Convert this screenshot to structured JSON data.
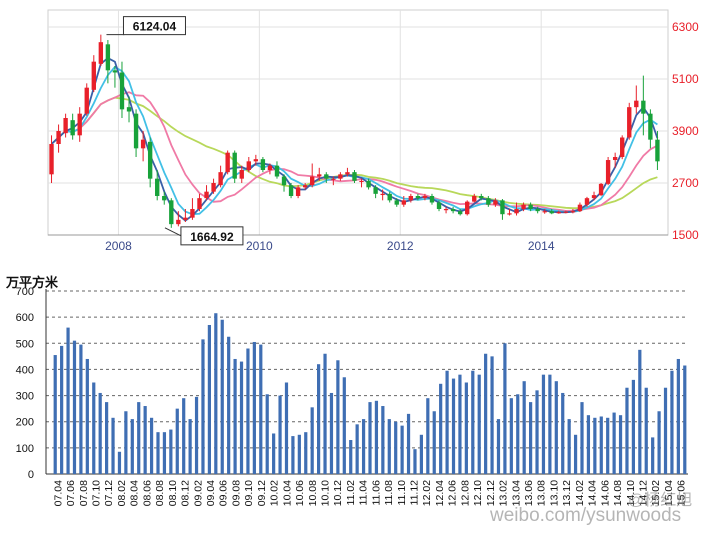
{
  "chart_data": [
    {
      "type": "candlestick",
      "title": "",
      "xlabel": "",
      "ylabel": "",
      "x_ticks": [
        "2008",
        "2010",
        "2012",
        "2014"
      ],
      "y_ticks": [
        "6300",
        "5100",
        "3900",
        "2700",
        "1500"
      ],
      "ylim": [
        1500,
        6300
      ],
      "xlim": [
        2007.0,
        2015.8
      ],
      "grid": true,
      "annotations": [
        {
          "text": "6124.04",
          "x": 2007.83,
          "y": 6124
        },
        {
          "text": "1664.92",
          "x": 2008.83,
          "y": 1665
        }
      ],
      "colors": {
        "up": "#e8202a",
        "down": "#18a23a",
        "axis_labels": "#e8202a",
        "ma_fast": "#3a5fa8",
        "ma_mid": "#42c0e6",
        "ma_slow": "#f07aa6",
        "ma_long": "#b8d85a"
      },
      "candles": [
        {
          "t": 2007.05,
          "o": 2900,
          "c": 3600,
          "h": 3800,
          "l": 2700
        },
        {
          "t": 2007.15,
          "o": 3600,
          "c": 3900,
          "h": 4050,
          "l": 3400
        },
        {
          "t": 2007.25,
          "o": 3850,
          "c": 4200,
          "h": 4300,
          "l": 3750
        },
        {
          "t": 2007.35,
          "o": 4150,
          "c": 3800,
          "h": 4300,
          "l": 3700
        },
        {
          "t": 2007.45,
          "o": 3800,
          "c": 4300,
          "h": 4450,
          "l": 3650
        },
        {
          "t": 2007.55,
          "o": 4300,
          "c": 4900,
          "h": 5000,
          "l": 4250
        },
        {
          "t": 2007.65,
          "o": 4850,
          "c": 5500,
          "h": 5650,
          "l": 4800
        },
        {
          "t": 2007.75,
          "o": 5450,
          "c": 5950,
          "h": 6124,
          "l": 5400
        },
        {
          "t": 2007.85,
          "o": 5900,
          "c": 5300,
          "h": 6000,
          "l": 5000
        },
        {
          "t": 2007.95,
          "o": 5300,
          "c": 5250,
          "h": 5400,
          "l": 4900
        },
        {
          "t": 2008.05,
          "o": 5250,
          "c": 4400,
          "h": 5500,
          "l": 4200
        },
        {
          "t": 2008.15,
          "o": 4450,
          "c": 4350,
          "h": 4700,
          "l": 4100
        },
        {
          "t": 2008.25,
          "o": 4300,
          "c": 3500,
          "h": 4400,
          "l": 3300
        },
        {
          "t": 2008.35,
          "o": 3500,
          "c": 3700,
          "h": 3900,
          "l": 3200
        },
        {
          "t": 2008.45,
          "o": 3650,
          "c": 2800,
          "h": 3750,
          "l": 2600
        },
        {
          "t": 2008.55,
          "o": 2800,
          "c": 2400,
          "h": 3000,
          "l": 2300
        },
        {
          "t": 2008.65,
          "o": 2400,
          "c": 2300,
          "h": 2500,
          "l": 2200
        },
        {
          "t": 2008.75,
          "o": 2300,
          "c": 1750,
          "h": 2350,
          "l": 1665
        },
        {
          "t": 2008.85,
          "o": 1750,
          "c": 1850,
          "h": 2050,
          "l": 1700
        },
        {
          "t": 2008.95,
          "o": 1850,
          "c": 1900,
          "h": 2100,
          "l": 1800
        },
        {
          "t": 2009.05,
          "o": 1900,
          "c": 2100,
          "h": 2350,
          "l": 1850
        },
        {
          "t": 2009.15,
          "o": 2100,
          "c": 2350,
          "h": 2450,
          "l": 2050
        },
        {
          "t": 2009.25,
          "o": 2350,
          "c": 2500,
          "h": 2650,
          "l": 2300
        },
        {
          "t": 2009.35,
          "o": 2500,
          "c": 2700,
          "h": 2800,
          "l": 2450
        },
        {
          "t": 2009.45,
          "o": 2650,
          "c": 2950,
          "h": 3100,
          "l": 2600
        },
        {
          "t": 2009.55,
          "o": 2950,
          "c": 3400,
          "h": 3450,
          "l": 2900
        },
        {
          "t": 2009.65,
          "o": 3400,
          "c": 2800,
          "h": 3450,
          "l": 2700
        },
        {
          "t": 2009.75,
          "o": 2800,
          "c": 3000,
          "h": 3100,
          "l": 2700
        },
        {
          "t": 2009.85,
          "o": 3000,
          "c": 3200,
          "h": 3300,
          "l": 2950
        },
        {
          "t": 2009.95,
          "o": 3200,
          "c": 3250,
          "h": 3350,
          "l": 3100
        },
        {
          "t": 2010.05,
          "o": 3250,
          "c": 3000,
          "h": 3300,
          "l": 2950
        },
        {
          "t": 2010.15,
          "o": 3000,
          "c": 3100,
          "h": 3150,
          "l": 2900
        },
        {
          "t": 2010.25,
          "o": 3100,
          "c": 2850,
          "h": 3200,
          "l": 2800
        },
        {
          "t": 2010.35,
          "o": 2850,
          "c": 2650,
          "h": 2900,
          "l": 2500
        },
        {
          "t": 2010.45,
          "o": 2650,
          "c": 2400,
          "h": 2700,
          "l": 2350
        },
        {
          "t": 2010.55,
          "o": 2400,
          "c": 2600,
          "h": 2650,
          "l": 2350
        },
        {
          "t": 2010.65,
          "o": 2600,
          "c": 2650,
          "h": 2700,
          "l": 2550
        },
        {
          "t": 2010.75,
          "o": 2650,
          "c": 2850,
          "h": 3150,
          "l": 2600
        },
        {
          "t": 2010.85,
          "o": 2850,
          "c": 2900,
          "h": 3050,
          "l": 2750
        },
        {
          "t": 2010.95,
          "o": 2900,
          "c": 2800,
          "h": 2950,
          "l": 2700
        },
        {
          "t": 2011.05,
          "o": 2800,
          "c": 2800,
          "h": 2850,
          "l": 2650
        },
        {
          "t": 2011.15,
          "o": 2800,
          "c": 2900,
          "h": 2950,
          "l": 2750
        },
        {
          "t": 2011.25,
          "o": 2900,
          "c": 2950,
          "h": 3050,
          "l": 2850
        },
        {
          "t": 2011.35,
          "o": 2950,
          "c": 2750,
          "h": 3000,
          "l": 2700
        },
        {
          "t": 2011.45,
          "o": 2750,
          "c": 2750,
          "h": 2800,
          "l": 2600
        },
        {
          "t": 2011.55,
          "o": 2750,
          "c": 2600,
          "h": 2800,
          "l": 2550
        },
        {
          "t": 2011.65,
          "o": 2600,
          "c": 2450,
          "h": 2650,
          "l": 2350
        },
        {
          "t": 2011.75,
          "o": 2450,
          "c": 2450,
          "h": 2550,
          "l": 2300
        },
        {
          "t": 2011.85,
          "o": 2450,
          "c": 2300,
          "h": 2500,
          "l": 2250
        },
        {
          "t": 2011.95,
          "o": 2300,
          "c": 2200,
          "h": 2350,
          "l": 2150
        },
        {
          "t": 2012.05,
          "o": 2200,
          "c": 2300,
          "h": 2400,
          "l": 2150
        },
        {
          "t": 2012.15,
          "o": 2300,
          "c": 2400,
          "h": 2450,
          "l": 2250
        },
        {
          "t": 2012.25,
          "o": 2400,
          "c": 2350,
          "h": 2450,
          "l": 2300
        },
        {
          "t": 2012.35,
          "o": 2350,
          "c": 2400,
          "h": 2450,
          "l": 2300
        },
        {
          "t": 2012.45,
          "o": 2400,
          "c": 2250,
          "h": 2450,
          "l": 2200
        },
        {
          "t": 2012.55,
          "o": 2250,
          "c": 2100,
          "h": 2300,
          "l": 2050
        },
        {
          "t": 2012.65,
          "o": 2100,
          "c": 2100,
          "h": 2150,
          "l": 2000
        },
        {
          "t": 2012.75,
          "o": 2100,
          "c": 2050,
          "h": 2150,
          "l": 2000
        },
        {
          "t": 2012.85,
          "o": 2050,
          "c": 1980,
          "h": 2100,
          "l": 1950
        },
        {
          "t": 2012.95,
          "o": 1980,
          "c": 2270,
          "h": 2300,
          "l": 1950
        },
        {
          "t": 2013.05,
          "o": 2270,
          "c": 2400,
          "h": 2450,
          "l": 2250
        },
        {
          "t": 2013.15,
          "o": 2400,
          "c": 2350,
          "h": 2450,
          "l": 2300
        },
        {
          "t": 2013.25,
          "o": 2350,
          "c": 2200,
          "h": 2400,
          "l": 2150
        },
        {
          "t": 2013.35,
          "o": 2200,
          "c": 2300,
          "h": 2350,
          "l": 2150
        },
        {
          "t": 2013.45,
          "o": 2300,
          "c": 1980,
          "h": 2330,
          "l": 1850
        },
        {
          "t": 2013.55,
          "o": 1980,
          "c": 2000,
          "h": 2100,
          "l": 1950
        },
        {
          "t": 2013.65,
          "o": 2000,
          "c": 2100,
          "h": 2250,
          "l": 1950
        },
        {
          "t": 2013.75,
          "o": 2100,
          "c": 2200,
          "h": 2250,
          "l": 2050
        },
        {
          "t": 2013.85,
          "o": 2200,
          "c": 2100,
          "h": 2250,
          "l": 2050
        },
        {
          "t": 2013.95,
          "o": 2100,
          "c": 2050,
          "h": 2150,
          "l": 2000
        },
        {
          "t": 2014.05,
          "o": 2050,
          "c": 2050,
          "h": 2100,
          "l": 1990
        },
        {
          "t": 2014.15,
          "o": 2050,
          "c": 2000,
          "h": 2100,
          "l": 1980
        },
        {
          "t": 2014.25,
          "o": 2000,
          "c": 2030,
          "h": 2060,
          "l": 1990
        },
        {
          "t": 2014.35,
          "o": 2030,
          "c": 2040,
          "h": 2060,
          "l": 2000
        },
        {
          "t": 2014.45,
          "o": 2040,
          "c": 2050,
          "h": 2100,
          "l": 2000
        },
        {
          "t": 2014.55,
          "o": 2050,
          "c": 2200,
          "h": 2250,
          "l": 2030
        },
        {
          "t": 2014.65,
          "o": 2200,
          "c": 2350,
          "h": 2380,
          "l": 2150
        },
        {
          "t": 2014.75,
          "o": 2350,
          "c": 2420,
          "h": 2500,
          "l": 2300
        },
        {
          "t": 2014.85,
          "o": 2420,
          "c": 2680,
          "h": 2700,
          "l": 2400
        },
        {
          "t": 2014.95,
          "o": 2680,
          "c": 3230,
          "h": 3300,
          "l": 2650
        },
        {
          "t": 2015.05,
          "o": 3230,
          "c": 3300,
          "h": 3400,
          "l": 3050
        },
        {
          "t": 2015.15,
          "o": 3300,
          "c": 3750,
          "h": 3800,
          "l": 3250
        },
        {
          "t": 2015.25,
          "o": 3750,
          "c": 4450,
          "h": 4550,
          "l": 3700
        },
        {
          "t": 2015.35,
          "o": 4450,
          "c": 4600,
          "h": 4950,
          "l": 4300
        },
        {
          "t": 2015.45,
          "o": 4600,
          "c": 4300,
          "h": 5178,
          "l": 3800
        },
        {
          "t": 2015.55,
          "o": 4300,
          "c": 3700,
          "h": 4400,
          "l": 3500
        },
        {
          "t": 2015.65,
          "o": 3700,
          "c": 3200,
          "h": 3900,
          "l": 3000
        }
      ]
    },
    {
      "type": "bar",
      "title": "",
      "ylabel": "万平方米",
      "xlabel": "",
      "ylim": [
        0,
        700
      ],
      "y_ticks": [
        "0",
        "100",
        "200",
        "300",
        "400",
        "500",
        "600",
        "700"
      ],
      "grid": true,
      "bar_color": "#3f6eb3",
      "tick_labels": [
        "07.04",
        "07.06",
        "07.08",
        "07.10",
        "07.12",
        "08.02",
        "08.04",
        "08.06",
        "08.08",
        "08.10",
        "08.12",
        "09.02",
        "09.04",
        "09.06",
        "09.08",
        "09.10",
        "09.12",
        "10.02",
        "10.04",
        "10.06",
        "10.08",
        "10.10",
        "10.12",
        "11.02",
        "11.04",
        "11.06",
        "11.08",
        "11.10",
        "11.12",
        "12.02",
        "12.04",
        "12.06",
        "12.08",
        "12.10",
        "12.12",
        "13.02",
        "13.04",
        "13.06",
        "13.08",
        "13.10",
        "13.12",
        "14.02",
        "14.04",
        "14.06",
        "14.08",
        "14.10",
        "14.12",
        "15.02",
        "15.04",
        "15.06"
      ],
      "values": [
        455,
        490,
        560,
        510,
        495,
        440,
        350,
        310,
        275,
        215,
        85,
        240,
        210,
        275,
        260,
        215,
        160,
        160,
        170,
        250,
        290,
        210,
        295,
        515,
        570,
        615,
        590,
        525,
        440,
        430,
        480,
        505,
        495,
        305,
        155,
        300,
        350,
        145,
        150,
        160,
        255,
        420,
        460,
        310,
        435,
        370,
        130,
        190,
        210,
        275,
        280,
        260,
        210,
        200,
        185,
        230,
        95,
        150,
        290,
        240,
        345,
        395,
        365,
        380,
        350,
        395,
        380,
        460,
        450,
        210,
        500,
        290,
        305,
        355,
        275,
        320,
        380,
        380,
        355,
        310,
        210,
        150,
        275,
        225,
        215,
        220,
        215,
        235,
        225,
        330,
        360,
        475,
        330,
        140,
        240,
        330,
        395,
        440,
        415
      ]
    }
  ],
  "watermark": {
    "handle": "@杨红旭",
    "site": "weibo.com/ysunwoods"
  }
}
